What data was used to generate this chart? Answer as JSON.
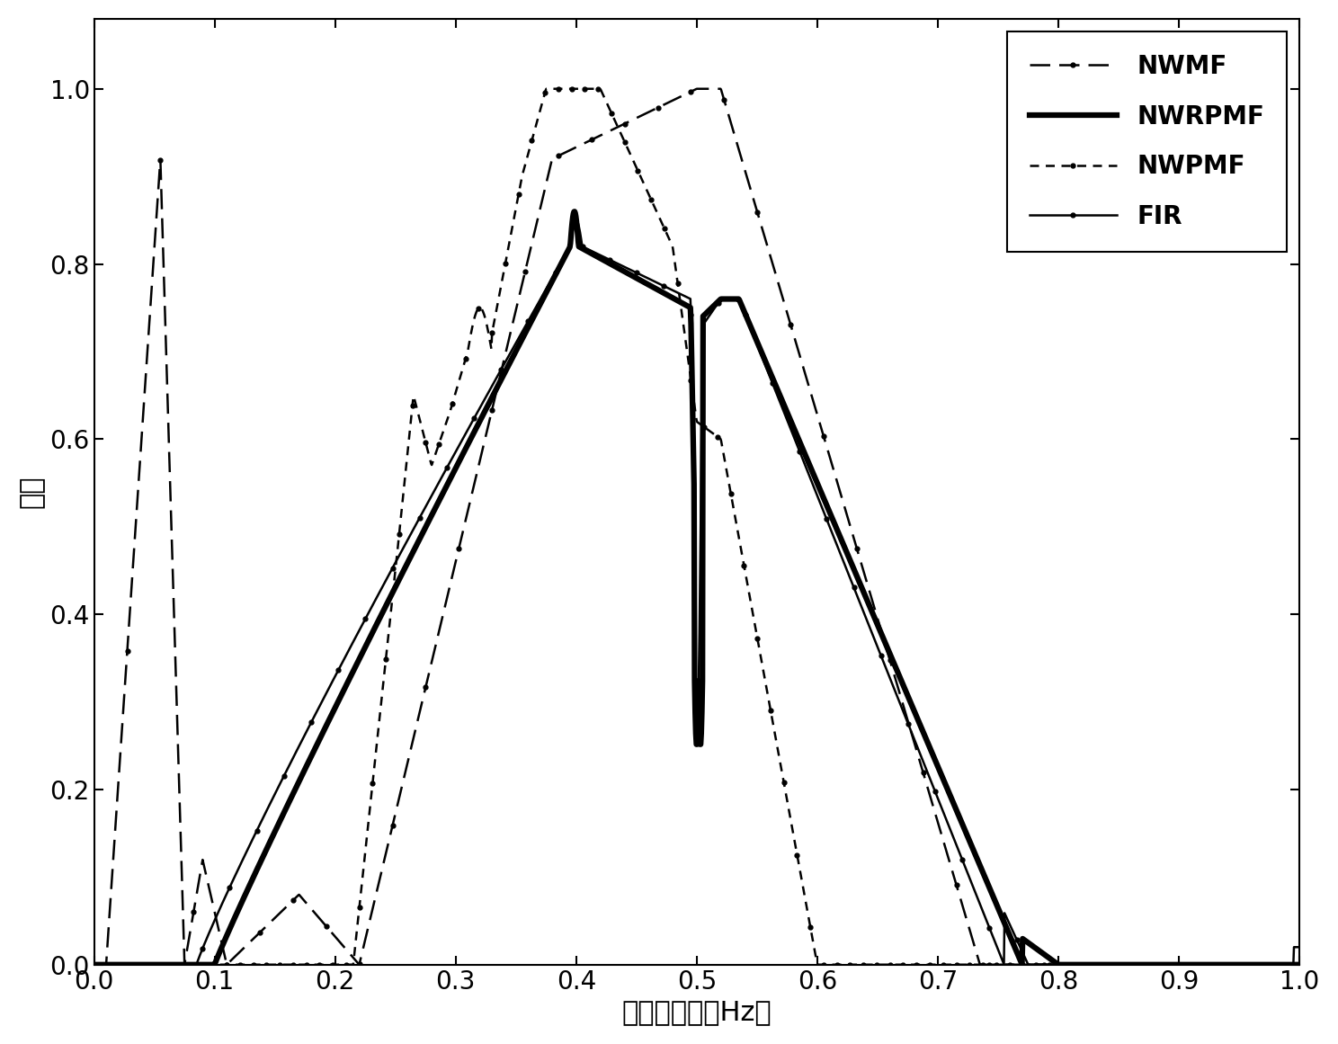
{
  "xlabel": "归一化频率（Hz）",
  "ylabel": "幅度",
  "xlim": [
    0,
    1.0
  ],
  "ylim": [
    0,
    1.08
  ],
  "xticks": [
    0,
    0.1,
    0.2,
    0.3,
    0.4,
    0.5,
    0.6,
    0.7,
    0.8,
    0.9,
    1.0
  ],
  "yticks": [
    0,
    0.2,
    0.4,
    0.6,
    0.8,
    1.0
  ],
  "legend_labels": [
    "NWMF",
    "NWRPMF",
    "NWPMF",
    "FIR"
  ],
  "font_size_label": 22,
  "font_size_tick": 20,
  "font_size_legend": 20
}
